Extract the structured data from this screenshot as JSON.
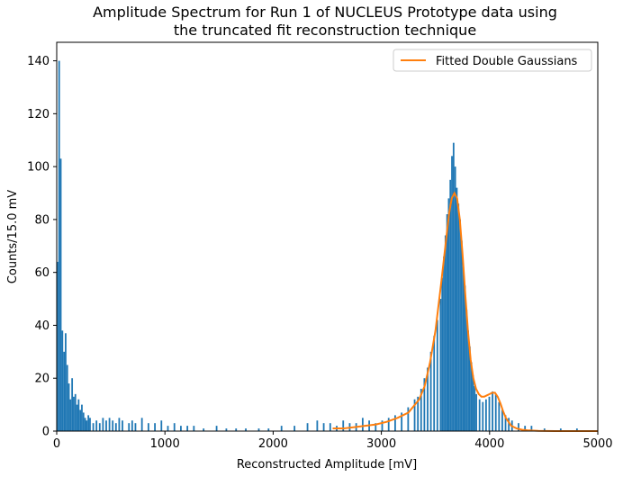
{
  "chart_data": {
    "type": "bar",
    "title_lines": [
      "Amplitude Spectrum for Run 1 of NUCLEUS Prototype data using",
      "the truncated fit reconstruction technique"
    ],
    "xlabel": "Reconstructed Amplitude [mV]",
    "ylabel": "Counts/15.0 mV",
    "xlim": [
      0,
      5000
    ],
    "ylim": [
      0,
      147
    ],
    "xticks": [
      0,
      1000,
      2000,
      3000,
      4000,
      5000
    ],
    "yticks": [
      0,
      20,
      40,
      60,
      80,
      100,
      120,
      140
    ],
    "grid": false,
    "legend_position": "top-right",
    "bin_width": 15,
    "histogram": {
      "color": "#1f77b4",
      "bin_starts": [
        0,
        15,
        30,
        45,
        60,
        75,
        90,
        105,
        120,
        135,
        150,
        165,
        180,
        195,
        210,
        225,
        240,
        255,
        270,
        285,
        300,
        330,
        360,
        390,
        420,
        450,
        480,
        510,
        540,
        570,
        600,
        660,
        690,
        720,
        780,
        840,
        900,
        960,
        1020,
        1080,
        1140,
        1200,
        1260,
        1350,
        1470,
        1560,
        1650,
        1740,
        1860,
        1950,
        2070,
        2190,
        2310,
        2400,
        2460,
        2520,
        2580,
        2640,
        2700,
        2760,
        2820,
        2880,
        2940,
        3000,
        3060,
        3120,
        3180,
        3240,
        3300,
        3330,
        3360,
        3390,
        3420,
        3450,
        3480,
        3510,
        3540,
        3555,
        3570,
        3585,
        3600,
        3615,
        3630,
        3645,
        3660,
        3675,
        3690,
        3705,
        3720,
        3735,
        3750,
        3765,
        3780,
        3795,
        3810,
        3825,
        3840,
        3855,
        3870,
        3900,
        3930,
        3960,
        3990,
        4020,
        4050,
        4080,
        4110,
        4140,
        4170,
        4200,
        4260,
        4320,
        4380,
        4500,
        4650,
        4800
      ],
      "counts": [
        64,
        140,
        103,
        38,
        30,
        37,
        25,
        18,
        12,
        20,
        13,
        14,
        10,
        12,
        8,
        10,
        7,
        5,
        4,
        6,
        5,
        3,
        4,
        3,
        5,
        4,
        5,
        4,
        3,
        5,
        4,
        3,
        4,
        3,
        5,
        3,
        3,
        4,
        2,
        3,
        2,
        2,
        2,
        1,
        2,
        1,
        1,
        1,
        1,
        1,
        2,
        2,
        3,
        4,
        3,
        3,
        2,
        4,
        3,
        3,
        5,
        4,
        3,
        4,
        5,
        6,
        7,
        9,
        12,
        13,
        16,
        20,
        24,
        30,
        36,
        42,
        50,
        58,
        66,
        74,
        82,
        88,
        95,
        104,
        109,
        100,
        92,
        86,
        80,
        72,
        62,
        55,
        46,
        38,
        32,
        26,
        21,
        17,
        14,
        12,
        11,
        12,
        13,
        15,
        14,
        11,
        8,
        6,
        5,
        4,
        3,
        2,
        2,
        1,
        1,
        1
      ]
    },
    "series": [
      {
        "name": "Fitted Double Gaussians",
        "type": "line",
        "color": "#ff7f0e",
        "x": [
          2550,
          2650,
          2750,
          2850,
          2950,
          3050,
          3150,
          3250,
          3350,
          3400,
          3450,
          3500,
          3550,
          3600,
          3625,
          3650,
          3675,
          3700,
          3725,
          3750,
          3775,
          3800,
          3825,
          3850,
          3875,
          3900,
          3925,
          3950,
          3975,
          4000,
          4025,
          4050,
          4075,
          4100,
          4125,
          4150,
          4200,
          4250,
          4300,
          4350,
          4450,
          4600,
          4800,
          5000
        ],
        "y": [
          1,
          1,
          1.5,
          2,
          2.5,
          3.5,
          5,
          7,
          12,
          17,
          26,
          38,
          55,
          73,
          82,
          88,
          90,
          88,
          80,
          67,
          52,
          38,
          27,
          20,
          16,
          14,
          13,
          13,
          13.5,
          14,
          14.5,
          14.5,
          13,
          10.5,
          7.5,
          5,
          2,
          1,
          0.5,
          0.3,
          0.1,
          0,
          0,
          0
        ]
      }
    ]
  }
}
